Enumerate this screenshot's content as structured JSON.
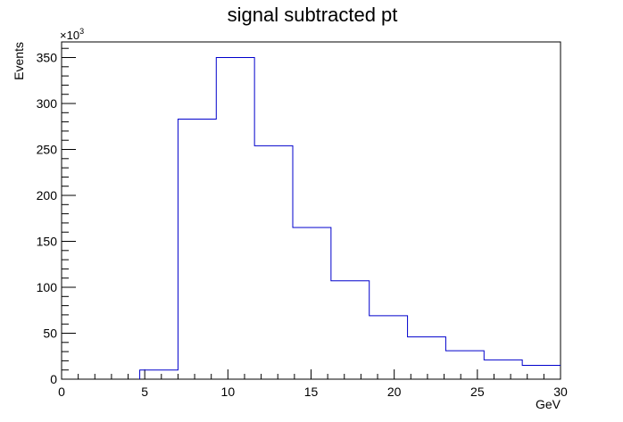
{
  "chart_data": {
    "type": "bar",
    "style": "step-histogram",
    "title": "signal subtracted pt",
    "xlabel": "GeV",
    "ylabel": "Events",
    "y_multiplier_label": "×10",
    "y_multiplier_exp": "3",
    "xlim": [
      0,
      30
    ],
    "ylim": [
      0,
      367
    ],
    "x_ticks": [
      0,
      5,
      10,
      15,
      20,
      25,
      30
    ],
    "y_ticks": [
      0,
      50,
      100,
      150,
      200,
      250,
      300,
      350
    ],
    "bin_edges": [
      4.7,
      7.0,
      9.3,
      11.6,
      13.9,
      16.2,
      18.5,
      20.8,
      23.1,
      25.4,
      27.7,
      30.0
    ],
    "values": [
      10,
      283,
      350,
      254,
      165,
      107,
      69,
      46,
      31,
      21,
      15
    ],
    "colors": {
      "line": "#0000cc",
      "axis": "#000000"
    }
  }
}
